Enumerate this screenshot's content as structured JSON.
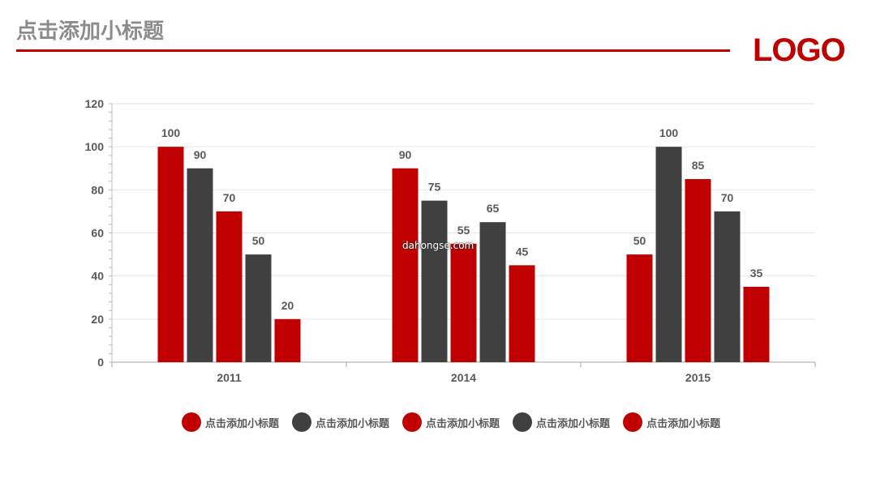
{
  "header": {
    "title": "点击添加小标题",
    "logo": "LOGO"
  },
  "colors": {
    "red": "#c00000",
    "dark": "#404040",
    "title_gray": "#8c8c8c",
    "axis_text": "#595959"
  },
  "watermark": "dahongse.com",
  "chart_data": {
    "type": "bar",
    "categories": [
      "2011",
      "2014",
      "2015"
    ],
    "ylim": [
      0,
      120
    ],
    "yticks": [
      0,
      20,
      40,
      60,
      80,
      100,
      120
    ],
    "grid": true,
    "legend_position": "bottom",
    "series": [
      {
        "name": "点击添加小标题",
        "color": "#c00000",
        "values": [
          100,
          90,
          50
        ]
      },
      {
        "name": "点击添加小标题",
        "color": "#404040",
        "values": [
          90,
          75,
          100
        ]
      },
      {
        "name": "点击添加小标题",
        "color": "#c00000",
        "values": [
          70,
          55,
          85
        ]
      },
      {
        "name": "点击添加小标题",
        "color": "#404040",
        "values": [
          50,
          65,
          70
        ]
      },
      {
        "name": "点击添加小标题",
        "color": "#c00000",
        "values": [
          20,
          45,
          35
        ]
      }
    ]
  }
}
